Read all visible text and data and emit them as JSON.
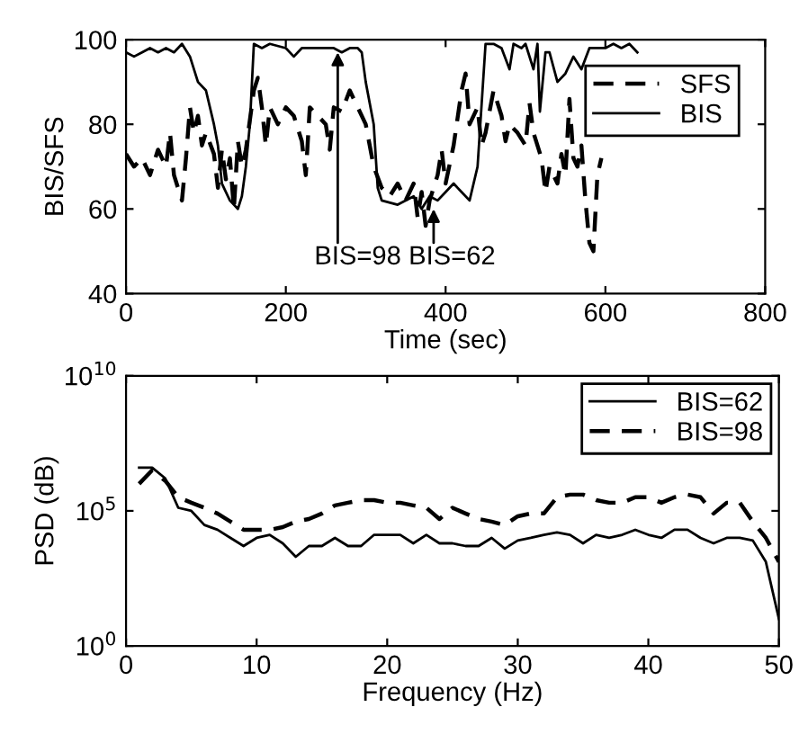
{
  "chart_data": [
    {
      "type": "line",
      "xlabel": "Time (sec)",
      "ylabel": "BIS/SFS",
      "xlim": [
        0,
        800
      ],
      "ylim": [
        40,
        100
      ],
      "xticks": [
        0,
        200,
        400,
        600,
        800
      ],
      "yticks": [
        40,
        60,
        80,
        100
      ],
      "grid": false,
      "legend": "top right",
      "marker": "none",
      "series": [
        {
          "name": "SFS",
          "color": "#000000",
          "line_style": "dashed",
          "x": [
            0,
            10,
            20,
            30,
            40,
            50,
            55,
            60,
            65,
            70,
            75,
            80,
            85,
            90,
            95,
            100,
            110,
            115,
            120,
            125,
            130,
            135,
            140,
            145,
            150,
            160,
            165,
            170,
            175,
            180,
            190,
            200,
            210,
            220,
            225,
            230,
            240,
            250,
            255,
            260,
            270,
            280,
            290,
            300,
            310,
            320,
            330,
            340,
            350,
            360,
            365,
            370,
            375,
            380,
            390,
            395,
            400,
            410,
            420,
            425,
            430,
            440,
            445,
            450,
            460,
            470,
            475,
            480,
            490,
            500,
            505,
            510,
            520,
            525,
            530,
            540,
            545,
            550,
            555,
            560,
            565,
            570,
            575,
            580,
            585,
            590,
            595
          ],
          "values": [
            73,
            70,
            72,
            68,
            74,
            70,
            78,
            68,
            65,
            62,
            72,
            84,
            78,
            82,
            75,
            78,
            73,
            65,
            74,
            67,
            72,
            60,
            76,
            70,
            74,
            88,
            91,
            84,
            75,
            84,
            80,
            84,
            82,
            76,
            68,
            84,
            82,
            80,
            74,
            84,
            83,
            88,
            84,
            80,
            70,
            65,
            63,
            66,
            62,
            66,
            58,
            64,
            56,
            62,
            68,
            74,
            66,
            75,
            88,
            92,
            80,
            84,
            75,
            78,
            88,
            82,
            76,
            80,
            78,
            75,
            85,
            78,
            72,
            64,
            70,
            66,
            73,
            68,
            86,
            72,
            70,
            75,
            62,
            52,
            50,
            68,
            72
          ]
        },
        {
          "name": "BIS",
          "color": "#000000",
          "line_style": "solid",
          "x": [
            0,
            10,
            20,
            30,
            40,
            50,
            60,
            70,
            80,
            90,
            100,
            110,
            115,
            120,
            130,
            140,
            145,
            150,
            155,
            160,
            170,
            180,
            200,
            210,
            220,
            240,
            260,
            270,
            280,
            290,
            295,
            300,
            310,
            315,
            320,
            340,
            360,
            370,
            380,
            390,
            400,
            410,
            420,
            430,
            440,
            450,
            460,
            470,
            480,
            485,
            495,
            500,
            510,
            515,
            518,
            525,
            530,
            540,
            550,
            560,
            570,
            580,
            600,
            610,
            620,
            630,
            640
          ],
          "values": [
            97,
            96,
            97,
            98,
            97,
            98,
            97,
            99,
            96,
            90,
            88,
            80,
            75,
            66,
            62,
            60,
            63,
            70,
            80,
            99,
            98,
            99,
            98,
            96,
            98,
            98,
            98,
            97,
            98,
            98,
            97,
            90,
            80,
            65,
            62,
            61,
            63,
            60,
            63,
            62,
            64,
            66,
            64,
            62,
            70,
            99,
            99,
            98,
            93,
            99,
            98,
            99,
            93,
            99,
            83,
            97,
            97,
            90,
            92,
            96,
            93,
            98,
            98,
            99,
            98,
            99,
            97
          ]
        }
      ],
      "annotations": [
        {
          "text": "BIS=98",
          "x": 265,
          "y": 97
        },
        {
          "text": "BIS=62",
          "x": 385,
          "y": 60
        }
      ]
    },
    {
      "type": "line",
      "xlabel": "Frequency (Hz)",
      "ylabel": "PSD (dB)",
      "log": "y",
      "xlim": [
        0,
        50
      ],
      "ylim": [
        1,
        10000000000
      ],
      "xticks": [
        0,
        10,
        20,
        30,
        40,
        50
      ],
      "yticks": [
        {
          "value": 1,
          "label": "10$^{0}$"
        },
        {
          "value": 100000,
          "label": "10$^{5}$"
        },
        {
          "value": 10000000000,
          "label": "10$^{10}$"
        }
      ],
      "grid": false,
      "legend": "top right",
      "marker": "none",
      "series": [
        {
          "name": "BIS=62",
          "color": "#000000",
          "line_style": "solid",
          "x": [
            1,
            2,
            3,
            4,
            5,
            6,
            7,
            8,
            9,
            10,
            11,
            12,
            13,
            14,
            15,
            16,
            17,
            18,
            19,
            20,
            21,
            22,
            23,
            24,
            25,
            26,
            27,
            28,
            29,
            30,
            31,
            32,
            33,
            34,
            35,
            36,
            37,
            38,
            39,
            40,
            41,
            42,
            43,
            44,
            45,
            46,
            47,
            48,
            49,
            50
          ],
          "values": [
            4000000,
            4000000,
            1600000,
            130000,
            100000,
            30000,
            20000,
            10000,
            5000,
            10000,
            13000,
            6300,
            2000,
            5000,
            5000,
            10000,
            5000,
            5000,
            13000,
            13000,
            13000,
            6300,
            13000,
            6300,
            6300,
            5000,
            5000,
            10000,
            4000,
            8000,
            10000,
            13000,
            16000,
            13000,
            6300,
            13000,
            10000,
            13000,
            20000,
            13000,
            10000,
            20000,
            20000,
            10000,
            6300,
            10000,
            10000,
            8000,
            1300,
            10
          ]
        },
        {
          "name": "BIS=98",
          "color": "#000000",
          "line_style": "dashed",
          "x": [
            1,
            2,
            3,
            4,
            5,
            6,
            7,
            8,
            9,
            10,
            11,
            12,
            13,
            14,
            15,
            16,
            17,
            18,
            19,
            20,
            21,
            22,
            23,
            24,
            25,
            26,
            27,
            28,
            29,
            30,
            31,
            32,
            33,
            34,
            35,
            36,
            37,
            38,
            39,
            40,
            41,
            42,
            43,
            44,
            45,
            46,
            47,
            48,
            49,
            50
          ],
          "values": [
            1000000,
            3200000,
            1300000,
            320000,
            200000,
            130000,
            80000,
            40000,
            20000,
            20000,
            20000,
            25000,
            40000,
            50000,
            80000,
            160000,
            200000,
            250000,
            250000,
            200000,
            200000,
            160000,
            130000,
            50000,
            130000,
            80000,
            50000,
            40000,
            30000,
            63000,
            80000,
            80000,
            320000,
            400000,
            400000,
            250000,
            200000,
            200000,
            320000,
            320000,
            200000,
            320000,
            400000,
            320000,
            80000,
            200000,
            200000,
            40000,
            10000,
            1300
          ]
        }
      ]
    }
  ]
}
